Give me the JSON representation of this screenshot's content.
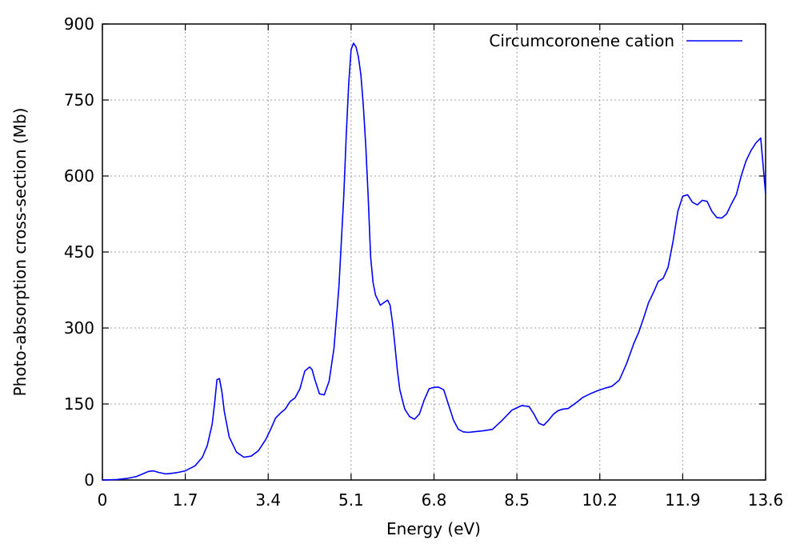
{
  "chart_data": {
    "type": "line",
    "title": "",
    "xlabel": "Energy (eV)",
    "ylabel": "Photo-absorption cross-section (Mb)",
    "xlim": [
      0,
      13.6
    ],
    "ylim": [
      0,
      900
    ],
    "xticks": [
      0,
      1.7,
      3.4,
      5.1,
      6.8,
      8.5,
      10.2,
      11.9,
      13.6
    ],
    "xtick_labels": [
      "0",
      "1.7",
      "3.4",
      "5.1",
      "6.8",
      "8.5",
      "10.2",
      "11.9",
      "13.6"
    ],
    "yticks": [
      0,
      150,
      300,
      450,
      600,
      750,
      900
    ],
    "ytick_labels": [
      "0",
      "150",
      "300",
      "450",
      "600",
      "750",
      "900"
    ],
    "grid": true,
    "legend_position": "top-right",
    "series": [
      {
        "name": "Circumcoronene cation",
        "color": "#0000ff",
        "x": [
          0.0,
          0.3,
          0.5,
          0.7,
          0.85,
          0.95,
          1.05,
          1.15,
          1.3,
          1.5,
          1.7,
          1.9,
          2.05,
          2.15,
          2.25,
          2.3,
          2.35,
          2.4,
          2.45,
          2.5,
          2.6,
          2.75,
          2.9,
          3.05,
          3.2,
          3.35,
          3.45,
          3.55,
          3.65,
          3.75,
          3.85,
          3.95,
          4.05,
          4.15,
          4.25,
          4.3,
          4.35,
          4.45,
          4.55,
          4.65,
          4.75,
          4.85,
          4.95,
          5.0,
          5.05,
          5.1,
          5.15,
          5.2,
          5.25,
          5.3,
          5.35,
          5.4,
          5.45,
          5.5,
          5.55,
          5.6,
          5.7,
          5.8,
          5.85,
          5.9,
          5.95,
          6.0,
          6.05,
          6.1,
          6.2,
          6.3,
          6.4,
          6.5,
          6.6,
          6.7,
          6.8,
          6.9,
          7.0,
          7.1,
          7.2,
          7.3,
          7.4,
          7.5,
          7.6,
          7.8,
          8.0,
          8.2,
          8.4,
          8.6,
          8.75,
          8.85,
          8.95,
          9.05,
          9.15,
          9.25,
          9.35,
          9.45,
          9.55,
          9.65,
          9.75,
          9.85,
          10.0,
          10.15,
          10.3,
          10.45,
          10.6,
          10.75,
          10.9,
          11.0,
          11.1,
          11.2,
          11.3,
          11.4,
          11.5,
          11.6,
          11.7,
          11.8,
          11.9,
          12.0,
          12.1,
          12.2,
          12.3,
          12.4,
          12.5,
          12.6,
          12.7,
          12.8,
          12.9,
          13.0,
          13.1,
          13.2,
          13.3,
          13.4,
          13.5,
          13.6
        ],
        "y": [
          0,
          1,
          3,
          7,
          13,
          17,
          18,
          15,
          12,
          14,
          18,
          28,
          45,
          68,
          110,
          150,
          198,
          200,
          175,
          135,
          85,
          55,
          45,
          47,
          58,
          80,
          100,
          122,
          132,
          140,
          155,
          162,
          180,
          215,
          223,
          218,
          200,
          170,
          168,
          195,
          260,
          380,
          560,
          680,
          780,
          850,
          862,
          855,
          835,
          800,
          740,
          660,
          560,
          440,
          390,
          365,
          345,
          352,
          355,
          345,
          310,
          265,
          215,
          178,
          140,
          125,
          120,
          130,
          158,
          180,
          183,
          183,
          178,
          148,
          118,
          100,
          95,
          94,
          95,
          97,
          100,
          118,
          138,
          147,
          145,
          130,
          112,
          108,
          118,
          130,
          137,
          140,
          141,
          148,
          155,
          163,
          170,
          176,
          181,
          185,
          197,
          230,
          270,
          292,
          320,
          350,
          370,
          392,
          398,
          420,
          470,
          530,
          560,
          563,
          548,
          543,
          552,
          550,
          530,
          518,
          517,
          525,
          545,
          563,
          600,
          630,
          650,
          665,
          675,
          565
        ]
      }
    ]
  }
}
